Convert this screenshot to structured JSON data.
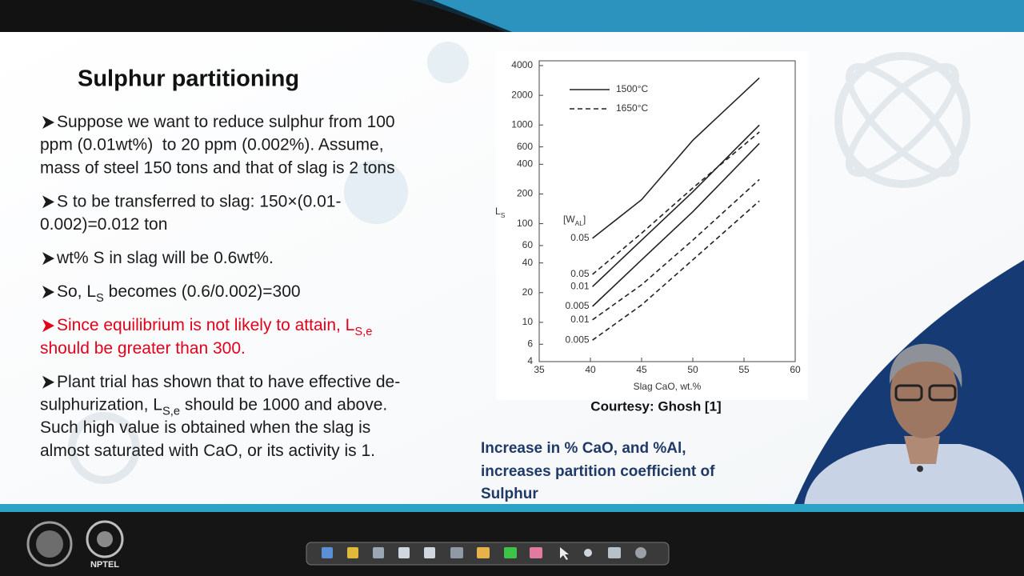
{
  "slide": {
    "title": "Sulphur partitioning",
    "bullets": [
      {
        "color": "#1b1b1b",
        "lines": [
          [
            "Suppose we want to reduce sulphur from 100"
          ],
          [
            "ppm (0.01wt%)  to 20 ppm (0.002%). Assume,"
          ],
          [
            "mass of steel 150 tons and that of slag is 2 tons"
          ]
        ]
      },
      {
        "color": "#1b1b1b",
        "lines": [
          [
            "S to be transferred to slag: 150×(0.01-"
          ],
          [
            "0.002)=0.012 ton"
          ]
        ]
      },
      {
        "color": "#1b1b1b",
        "lines": [
          [
            "wt% S in slag will be 0.6wt%."
          ]
        ]
      },
      {
        "color": "#1b1b1b",
        "lines": [
          [
            "So, L",
            {
              "text": "S",
              "sub": true
            },
            " becomes (0.6/0.002)=300"
          ]
        ]
      },
      {
        "color": "#e3001b",
        "lines": [
          [
            "Since equilibrium is not likely to attain, L",
            {
              "text": "S,e",
              "sub": true
            }
          ],
          [
            "should be greater than 300."
          ]
        ]
      },
      {
        "color": "#1b1b1b",
        "lines": [
          [
            "Plant trial has shown that to have effective de-"
          ],
          [
            "sulphurization, L",
            {
              "text": "S,e",
              "sub": true
            },
            " should be 1000 and above."
          ],
          [
            "Such high value is obtained when the slag is"
          ],
          [
            "almost saturated with CaO, or its activity is 1."
          ]
        ]
      }
    ],
    "courtesy": "Courtesy: Ghosh [1]",
    "note": [
      "Increase in % CaO, and %Al,",
      "increases partition coefficient of",
      "Sulphur"
    ]
  },
  "chart_data": {
    "type": "line",
    "x_label": "Slag CaO, wt.%",
    "y_label": [
      "L",
      {
        "text": "S",
        "sub": true
      }
    ],
    "curve_label_title": [
      "[W",
      {
        "text": "AL",
        "sub": true
      },
      "]"
    ],
    "x": [
      40.2,
      45,
      50,
      56.5
    ],
    "xlim": [
      35,
      60
    ],
    "xticks": [
      35,
      40,
      45,
      50,
      55,
      60
    ],
    "ylim": [
      4,
      4000
    ],
    "yticks": [
      4,
      6,
      10,
      20,
      40,
      60,
      100,
      200,
      400,
      600,
      1000,
      2000,
      4000
    ],
    "log_y": true,
    "color": "#222222",
    "series": [
      {
        "name": "1500°C",
        "dashed": false,
        "curves": [
          {
            "label": "0.05",
            "values": [
              71,
              175,
              700,
              3000
            ]
          },
          {
            "label": "0.01",
            "values": [
              23,
              68,
              210,
              1000
            ]
          },
          {
            "label": "0.005",
            "values": [
              14.5,
              43,
              132,
              650
            ]
          }
        ]
      },
      {
        "name": "1650°C",
        "dashed": true,
        "curves": [
          {
            "label": "0.05",
            "values": [
              30.6,
              80,
              230,
              850
            ]
          },
          {
            "label": "0.01",
            "values": [
              10.6,
              24,
              68,
              280
            ]
          },
          {
            "label": "0.005",
            "values": [
              6.6,
              15,
              43,
              170
            ]
          }
        ]
      }
    ]
  },
  "footer": {
    "logo_text": "NPTEL"
  }
}
